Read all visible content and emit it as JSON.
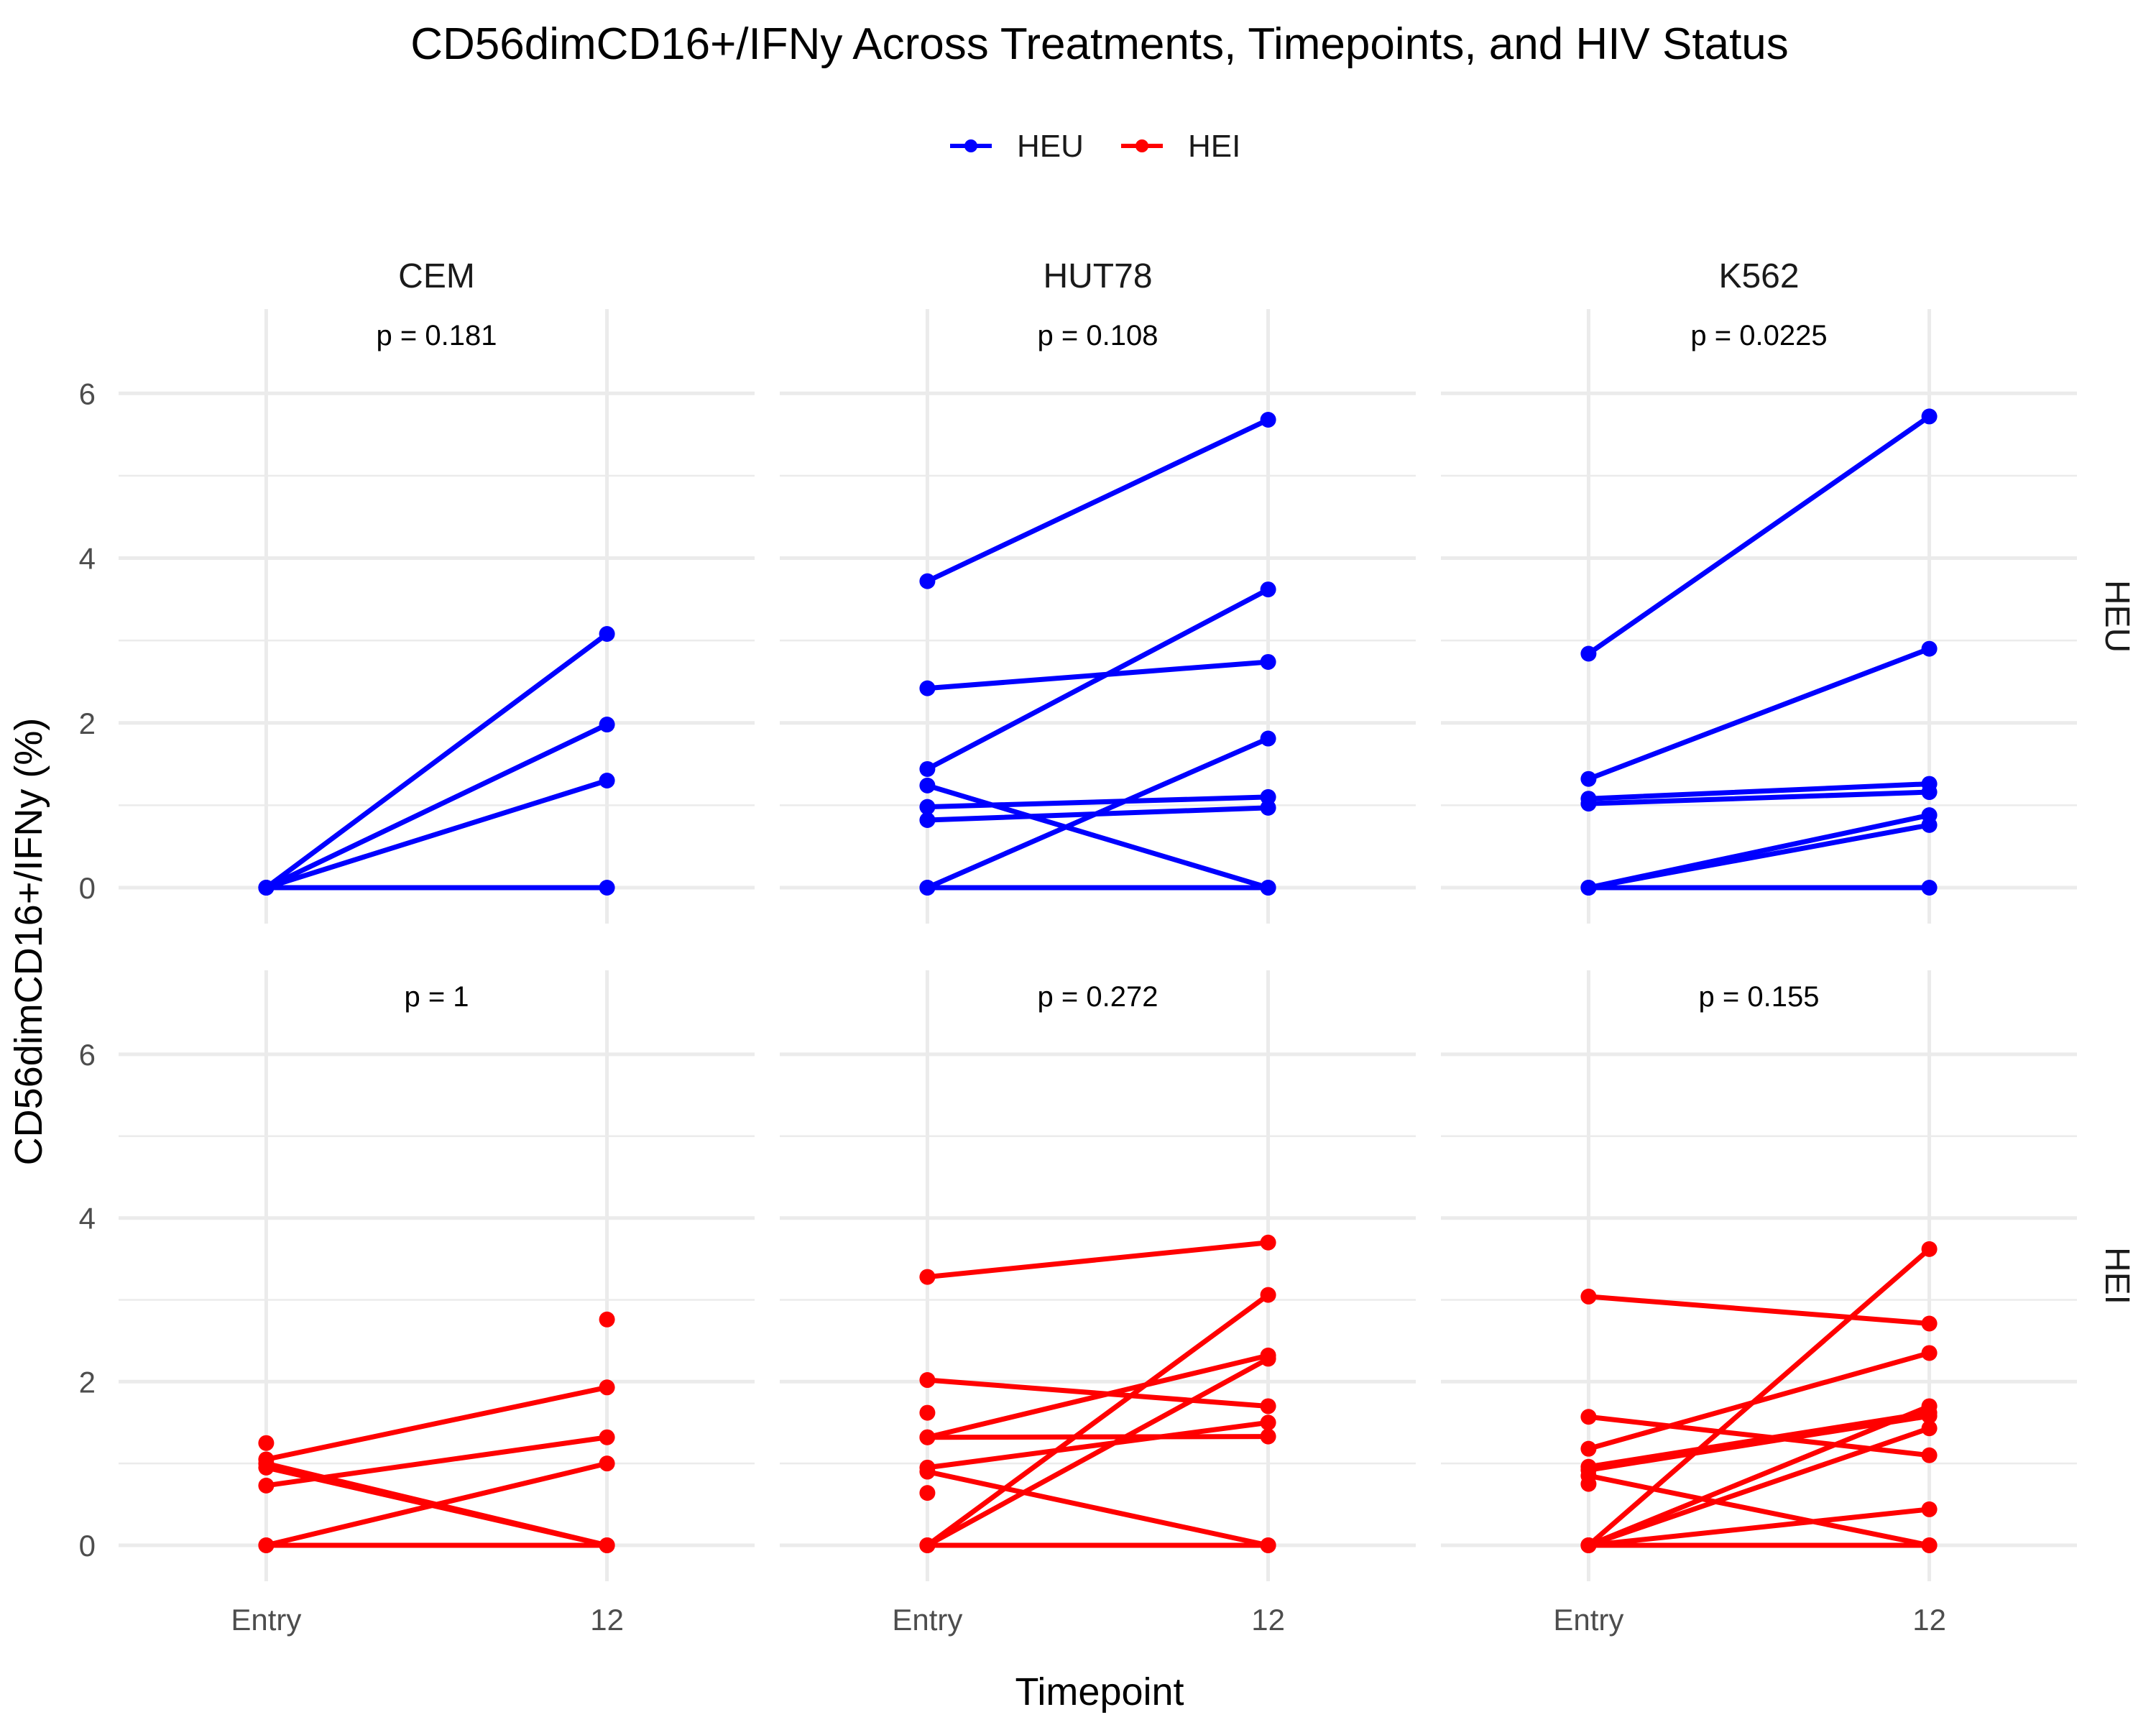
{
  "chart_data": {
    "type": "line",
    "title": "CD56dimCD16+/IFNy Across Treatments, Timepoints, and HIV Status",
    "xlabel": "Timepoint",
    "ylabel": "CD56dimCD16+/IFNy (%)",
    "x_categories": [
      "Entry",
      "12"
    ],
    "ylim": [
      0,
      6.5
    ],
    "y_ticks": [
      0,
      2,
      4,
      6
    ],
    "grid": true,
    "legend": {
      "position": "top",
      "entries": [
        {
          "name": "HEU",
          "color": "#0000ff"
        },
        {
          "name": "HEI",
          "color": "#ff0000"
        }
      ]
    },
    "columns": [
      "CEM",
      "HUT78",
      "K562"
    ],
    "rows": [
      "HEU",
      "HEI"
    ],
    "panels": [
      {
        "row": "HEU",
        "col": "CEM",
        "p_label": "p = 0.181",
        "color": "#0000ff",
        "pairs": [
          [
            0,
            3.08
          ],
          [
            0,
            1.98
          ],
          [
            0,
            1.3
          ],
          [
            0,
            0
          ]
        ],
        "points": []
      },
      {
        "row": "HEU",
        "col": "HUT78",
        "p_label": "p = 0.108",
        "color": "#0000ff",
        "pairs": [
          [
            3.72,
            5.68
          ],
          [
            2.42,
            2.74
          ],
          [
            1.44,
            3.62
          ],
          [
            1.24,
            0
          ],
          [
            0.98,
            1.1
          ],
          [
            0.82,
            0.97
          ],
          [
            0,
            1.81
          ],
          [
            0,
            0
          ]
        ],
        "points": []
      },
      {
        "row": "HEU",
        "col": "K562",
        "p_label": "p = 0.0225",
        "color": "#0000ff",
        "pairs": [
          [
            2.84,
            5.72
          ],
          [
            1.32,
            2.9
          ],
          [
            1.08,
            1.26
          ],
          [
            1.02,
            1.16
          ],
          [
            0,
            0.88
          ],
          [
            0,
            0.76
          ],
          [
            0,
            0
          ]
        ],
        "points": []
      },
      {
        "row": "HEI",
        "col": "CEM",
        "p_label": "p = 1",
        "color": "#ff0000",
        "pairs": [
          [
            1.05,
            1.93
          ],
          [
            0.73,
            1.32
          ],
          [
            0,
            1.0
          ],
          [
            1.0,
            0
          ],
          [
            0.95,
            0
          ],
          [
            0,
            0
          ]
        ],
        "points": [
          [
            0,
            1.25
          ],
          [
            1,
            2.76
          ]
        ]
      },
      {
        "row": "HEI",
        "col": "HUT78",
        "p_label": "p = 0.272",
        "color": "#ff0000",
        "pairs": [
          [
            3.28,
            3.7
          ],
          [
            2.02,
            1.7
          ],
          [
            1.32,
            2.32
          ],
          [
            1.32,
            1.33
          ],
          [
            0.95,
            1.5
          ],
          [
            0,
            3.06
          ],
          [
            0,
            2.28
          ],
          [
            0.9,
            0
          ],
          [
            0,
            0
          ]
        ],
        "points": [
          [
            0,
            1.62
          ],
          [
            0,
            0.64
          ]
        ]
      },
      {
        "row": "HEI",
        "col": "K562",
        "p_label": "p = 0.155",
        "color": "#ff0000",
        "pairs": [
          [
            3.04,
            2.71
          ],
          [
            1.57,
            1.1
          ],
          [
            1.18,
            2.35
          ],
          [
            0.96,
            1.62
          ],
          [
            0.92,
            1.58
          ],
          [
            0.85,
            0
          ],
          [
            0,
            3.62
          ],
          [
            0,
            1.7
          ],
          [
            0,
            1.43
          ],
          [
            0,
            0.44
          ],
          [
            0,
            0
          ]
        ],
        "points": [
          [
            0,
            0.75
          ]
        ]
      }
    ]
  }
}
